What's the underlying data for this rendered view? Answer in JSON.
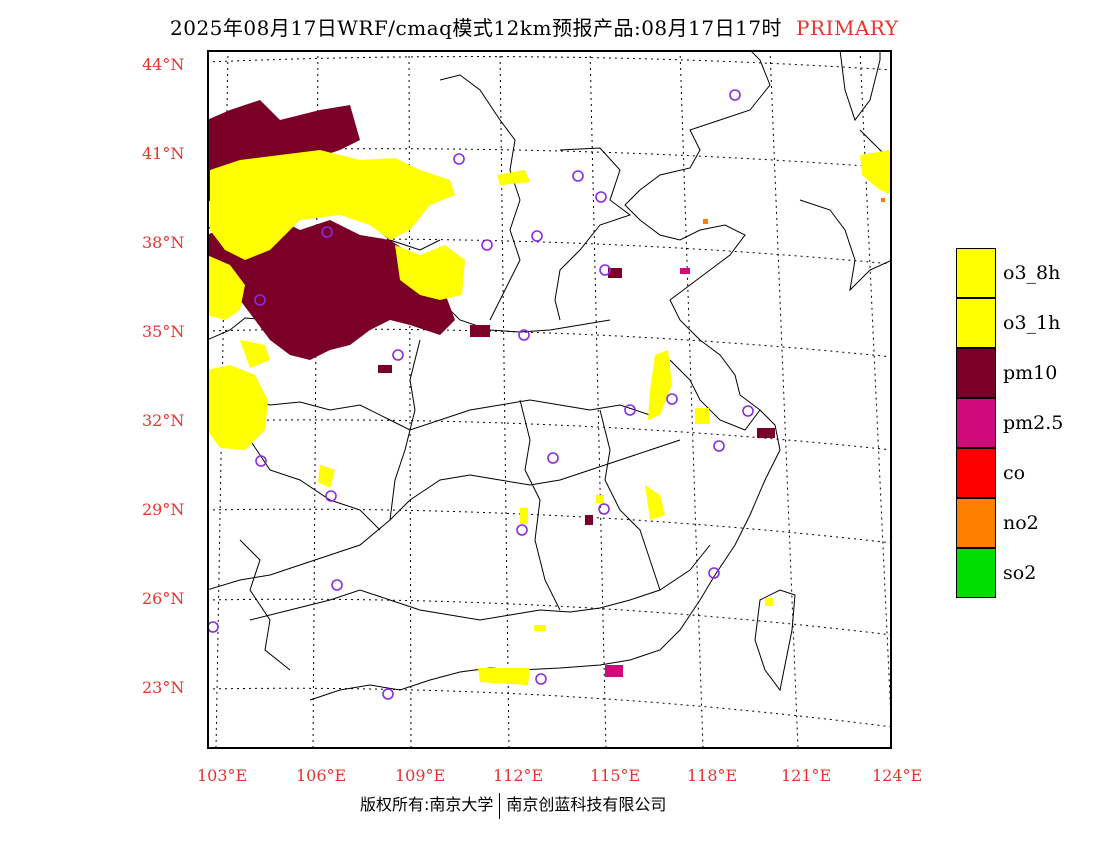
{
  "title": {
    "main": "2025年08月17日WRF/cmaq模式12km预报产品:08月17日17时",
    "tag": "PRIMARY"
  },
  "axes": {
    "lat_labels": [
      "44°N",
      "41°N",
      "38°N",
      "35°N",
      "32°N",
      "29°N",
      "26°N",
      "23°N"
    ],
    "lon_labels": [
      "103°E",
      "106°E",
      "109°E",
      "112°E",
      "115°E",
      "118°E",
      "121°E",
      "124°E"
    ]
  },
  "legend": [
    {
      "label": "o3_8h",
      "color": "#ffff00"
    },
    {
      "label": "o3_1h",
      "color": "#ffff00"
    },
    {
      "label": "pm10",
      "color": "#7a0028"
    },
    {
      "label": "pm2.5",
      "color": "#d10a7c"
    },
    {
      "label": "co",
      "color": "#ff0000"
    },
    {
      "label": "no2",
      "color": "#ff7f00"
    },
    {
      "label": "so2",
      "color": "#00dd00"
    }
  ],
  "colors": {
    "label_red": "#e8322c",
    "o3": "#ffff00",
    "pm10": "#7a0028",
    "pm25": "#d10a7c",
    "no2": "#ff7f00",
    "station": "#8a2be2"
  },
  "footer": {
    "left": "版权所有:南京大学",
    "right": "南京创蓝科技有限公司"
  }
}
